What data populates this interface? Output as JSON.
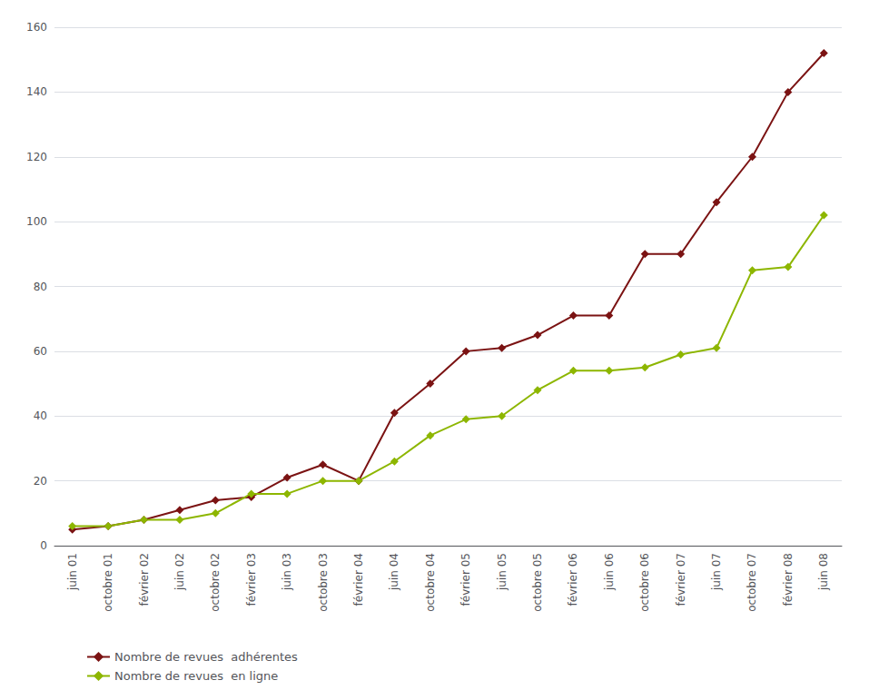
{
  "chart_data": {
    "type": "line",
    "categories": [
      "juin 01",
      "octobre 01",
      "février 02",
      "juin 02",
      "octobre 02",
      "février 03",
      "juin 03",
      "octobre 03",
      "février 04",
      "juin 04",
      "octobre 04",
      "février 05",
      "juin 05",
      "octobre 05",
      "février 06",
      "juin 06",
      "octobre 06",
      "février 07",
      "juin 07",
      "octobre 07",
      "février 08",
      "juin 08"
    ],
    "series": [
      {
        "name": "Nombre de revues  adhérentes",
        "color": "#7B1313",
        "marker": "diamond",
        "values": [
          5,
          6,
          8,
          11,
          14,
          15,
          21,
          25,
          20,
          41,
          50,
          60,
          61,
          65,
          71,
          71,
          90,
          90,
          106,
          120,
          140,
          152
        ]
      },
      {
        "name": "Nombre de revues  en ligne",
        "color": "#8DB600",
        "marker": "diamond",
        "values": [
          6,
          6,
          8,
          8,
          10,
          16,
          16,
          20,
          20,
          26,
          34,
          39,
          40,
          48,
          54,
          54,
          55,
          59,
          61,
          85,
          86,
          102
        ]
      }
    ],
    "ylim": [
      0,
      160
    ],
    "yticks": [
      0,
      20,
      40,
      60,
      80,
      100,
      120,
      140,
      160
    ],
    "grid": true,
    "legend": "bottom"
  }
}
